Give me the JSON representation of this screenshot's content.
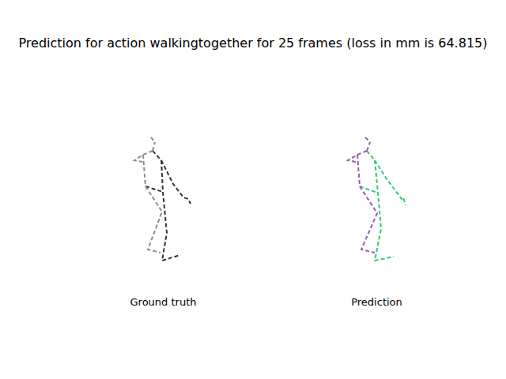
{
  "title": "Prediction for action walkingtogether for 25 frames (loss in mm is 64.815)",
  "chart_data": [
    {
      "type": "line",
      "x_label": "Ground truth",
      "tick_labels": false,
      "grid": false,
      "series": [
        {
          "color": "#8c8c8c",
          "line_style": "dashed",
          "x": [
            111,
            116
          ],
          "values": [
            186,
            180
          ]
        },
        {
          "color": "#8c8c8c",
          "line_style": "dashed",
          "x": [
            113,
            116
          ],
          "values": [
            169,
            180
          ]
        },
        {
          "color": "#8c8c8c",
          "line_style": "dashed",
          "x": [
            113,
            101,
            90,
            100
          ],
          "values": [
            169,
            164,
            157,
            155
          ]
        },
        {
          "color": "#8c8c8c",
          "line_style": "dashed",
          "x": [
            101,
            104
          ],
          "values": [
            164,
            124
          ]
        },
        {
          "color": "#8c8c8c",
          "line_style": "dashed",
          "x": [
            104,
            125,
            107,
            123
          ],
          "values": [
            124,
            92,
            44,
            40
          ]
        },
        {
          "color": "#333333",
          "line_style": "dashed",
          "x": [
            104,
            126
          ],
          "values": [
            124,
            117
          ]
        },
        {
          "color": "#333333",
          "line_style": "dashed",
          "x": [
            113,
            124
          ],
          "values": [
            169,
            157
          ]
        },
        {
          "color": "#333333",
          "line_style": "dashed",
          "x": [
            124,
            139,
            152,
            158,
            161
          ],
          "values": [
            157,
            127,
            110,
            108,
            102
          ]
        },
        {
          "color": "#333333",
          "line_style": "dashed",
          "x": [
            124,
            126,
            131,
            125,
            148
          ],
          "values": [
            157,
            117,
            65,
            30,
            37
          ]
        }
      ]
    },
    {
      "type": "line",
      "x_label": "Prediction",
      "tick_labels": false,
      "grid": false,
      "series": [
        {
          "color": "#9b59b6",
          "line_style": "dashed",
          "x": [
            112,
            118
          ],
          "values": [
            186,
            180
          ]
        },
        {
          "color": "#9b59b6",
          "line_style": "dashed",
          "x": [
            114,
            118
          ],
          "values": [
            169,
            180
          ]
        },
        {
          "color": "#9b59b6",
          "line_style": "dashed",
          "x": [
            114,
            102,
            90,
            100
          ],
          "values": [
            169,
            164,
            157,
            155
          ]
        },
        {
          "color": "#9b59b6",
          "line_style": "dashed",
          "x": [
            102,
            105
          ],
          "values": [
            164,
            124
          ]
        },
        {
          "color": "#9b59b6",
          "line_style": "dashed",
          "x": [
            105,
            127,
            107,
            124
          ],
          "values": [
            124,
            90,
            44,
            40
          ]
        },
        {
          "color": "#2ecc71",
          "line_style": "dashed",
          "x": [
            105,
            127
          ],
          "values": [
            124,
            116
          ]
        },
        {
          "color": "#2ecc71",
          "line_style": "dashed",
          "x": [
            114,
            124
          ],
          "values": [
            169,
            157
          ]
        },
        {
          "color": "#2ecc71",
          "line_style": "dashed",
          "x": [
            124,
            140,
            158,
            160,
            163
          ],
          "values": [
            157,
            132,
            108,
            110,
            100
          ]
        },
        {
          "color": "#2ecc71",
          "line_style": "dashed",
          "x": [
            124,
            128,
            132,
            124,
            148
          ],
          "values": [
            157,
            116,
            70,
            30,
            35
          ]
        }
      ]
    }
  ]
}
